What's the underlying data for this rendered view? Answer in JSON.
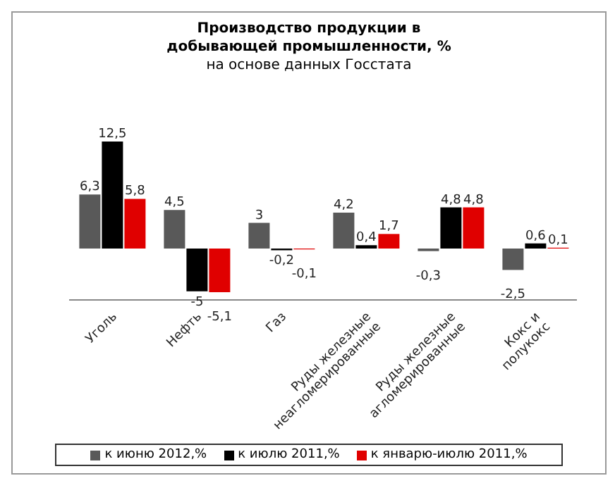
{
  "chart_data": {
    "type": "bar",
    "title": "Производство продукции в добывающей промышленности, %",
    "subtitle": "на основе данных Госстата",
    "categories": [
      "Уголь",
      "Нефть",
      "Газ",
      "Руды железные неагломерированные",
      "Руды железные агломерированные",
      "Кокс и полукокс"
    ],
    "series": [
      {
        "name": "к июню 2012,%",
        "color": "#595959",
        "values": [
          6.3,
          4.5,
          3,
          4.2,
          -0.3,
          -2.5
        ],
        "value_labels": [
          "6,3",
          "4,5",
          "3",
          "4,2",
          "-0,3",
          "-2,5"
        ]
      },
      {
        "name": "к июлю 2011,%",
        "color": "#000000",
        "values": [
          12.5,
          -5,
          -0.2,
          0.4,
          4.8,
          0.6
        ],
        "value_labels": [
          "12,5",
          "-5",
          "-0,2",
          "0,4",
          "4,8",
          "0,6"
        ]
      },
      {
        "name": "к январю-июлю 2011,%",
        "color": "#e00000",
        "values": [
          5.8,
          -5.1,
          -0.1,
          1.7,
          4.8,
          0.1
        ],
        "value_labels": [
          "5,8",
          "-5,1",
          "-0,1",
          "1,7",
          "4,8",
          "0,1"
        ]
      }
    ],
    "grid": false,
    "legend": "bottom"
  }
}
